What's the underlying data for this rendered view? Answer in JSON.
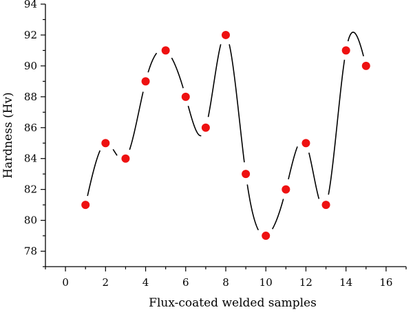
{
  "chart_data": {
    "type": "scatter",
    "xlabel": "Flux-coated welded samples",
    "ylabel": "Hardness (Hv)",
    "xlim": [
      -1,
      17
    ],
    "ylim": [
      77,
      94
    ],
    "x_ticks": [
      0,
      2,
      4,
      6,
      8,
      10,
      12,
      14,
      16
    ],
    "y_ticks": [
      78,
      80,
      82,
      84,
      86,
      88,
      90,
      92,
      94
    ],
    "x_tick_labels": [
      "0",
      "2",
      "4",
      "6",
      "8",
      "10",
      "12",
      "14",
      "16"
    ],
    "y_tick_labels": [
      "78",
      "80",
      "82",
      "84",
      "86",
      "88",
      "90",
      "92",
      "94"
    ],
    "grid": false,
    "smooth_curve": true,
    "point_color": "#ee1111",
    "curve_color": "#000000",
    "series": [
      {
        "x": [
          1,
          2,
          3,
          4,
          5,
          6,
          7,
          8,
          9,
          10,
          11,
          12,
          13,
          14,
          15
        ],
        "y": [
          81,
          85,
          84,
          89,
          91,
          88,
          86,
          92,
          83,
          79,
          82,
          85,
          81,
          91,
          90
        ]
      }
    ]
  }
}
